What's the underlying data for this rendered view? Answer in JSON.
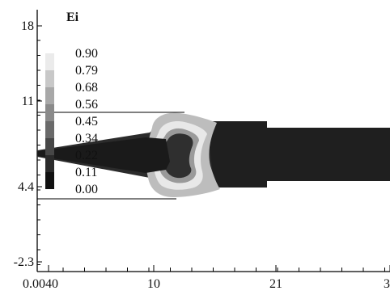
{
  "chart_data": {
    "type": "heatmap",
    "title": "",
    "xlabel": "",
    "ylabel": "",
    "xlim": [
      0.004,
      32
    ],
    "ylim": [
      -2.3,
      18
    ],
    "x_ticks": [
      "0.0040",
      "10",
      "21",
      "3"
    ],
    "y_ticks": [
      "18",
      "11",
      "4.4",
      "-2.3"
    ],
    "colorbar": {
      "title": "Ei",
      "levels": [
        0.9,
        0.79,
        0.68,
        0.56,
        0.45,
        0.34,
        0.22,
        0.11,
        0.0
      ],
      "level_labels": [
        "0.90",
        "0.79",
        "0.68",
        "0.56",
        "0.45",
        "0.34",
        "0.22",
        "0.11",
        "0.00"
      ],
      "band_colors": [
        "#ffffff",
        "#ebebeb",
        "#c8c8c8",
        "#a8a8a8",
        "#8a8a8a",
        "#6a6a6a",
        "#474747",
        "#2b2b2b",
        "#111111"
      ],
      "placement": "top-left"
    },
    "grid": false
  }
}
